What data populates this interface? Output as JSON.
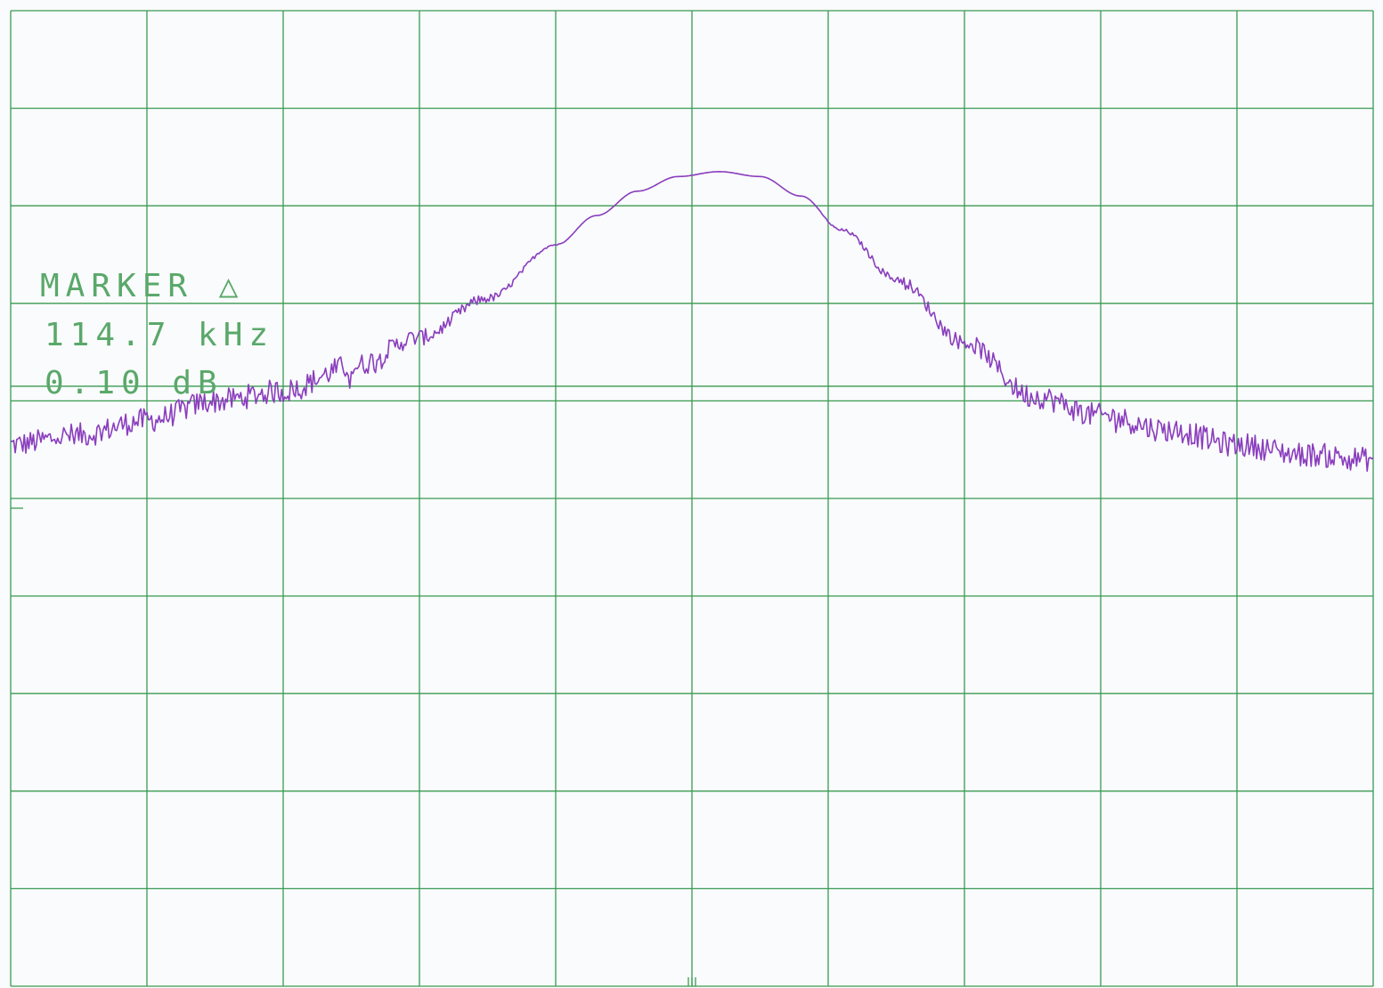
{
  "chart_data": {
    "type": "line",
    "title": "",
    "xlabel": "",
    "ylabel": "",
    "grid": true,
    "grid_divisions": {
      "x": 10,
      "y": 10
    },
    "xlim": [
      0,
      10
    ],
    "ylim": [
      0,
      10
    ],
    "colors": {
      "grid": "#3a9a52",
      "trace": "#8a3dbd",
      "marker_text": "#5aa86a"
    },
    "marker": {
      "line1": "MARKER △",
      "line2": "114.7 kHz",
      "line3": " 0.10 dB",
      "level_div": 6.15
    },
    "series": [
      {
        "x": [
          0,
          0.5,
          1,
          1.5,
          2,
          2.5,
          3,
          3.5,
          4,
          4.3,
          4.6,
          4.9,
          5.2,
          5.5,
          5.8,
          6.1,
          6.5,
          7,
          7.5,
          8,
          8.5,
          9,
          9.5,
          10
        ],
        "y": [
          5.55,
          5.65,
          5.8,
          6.0,
          6.1,
          6.35,
          6.65,
          7.05,
          7.6,
          7.9,
          8.15,
          8.3,
          8.35,
          8.3,
          8.1,
          7.75,
          7.25,
          6.6,
          6.05,
          5.85,
          5.7,
          5.55,
          5.45,
          5.4
        ],
        "noise_div": 0.25
      }
    ]
  }
}
